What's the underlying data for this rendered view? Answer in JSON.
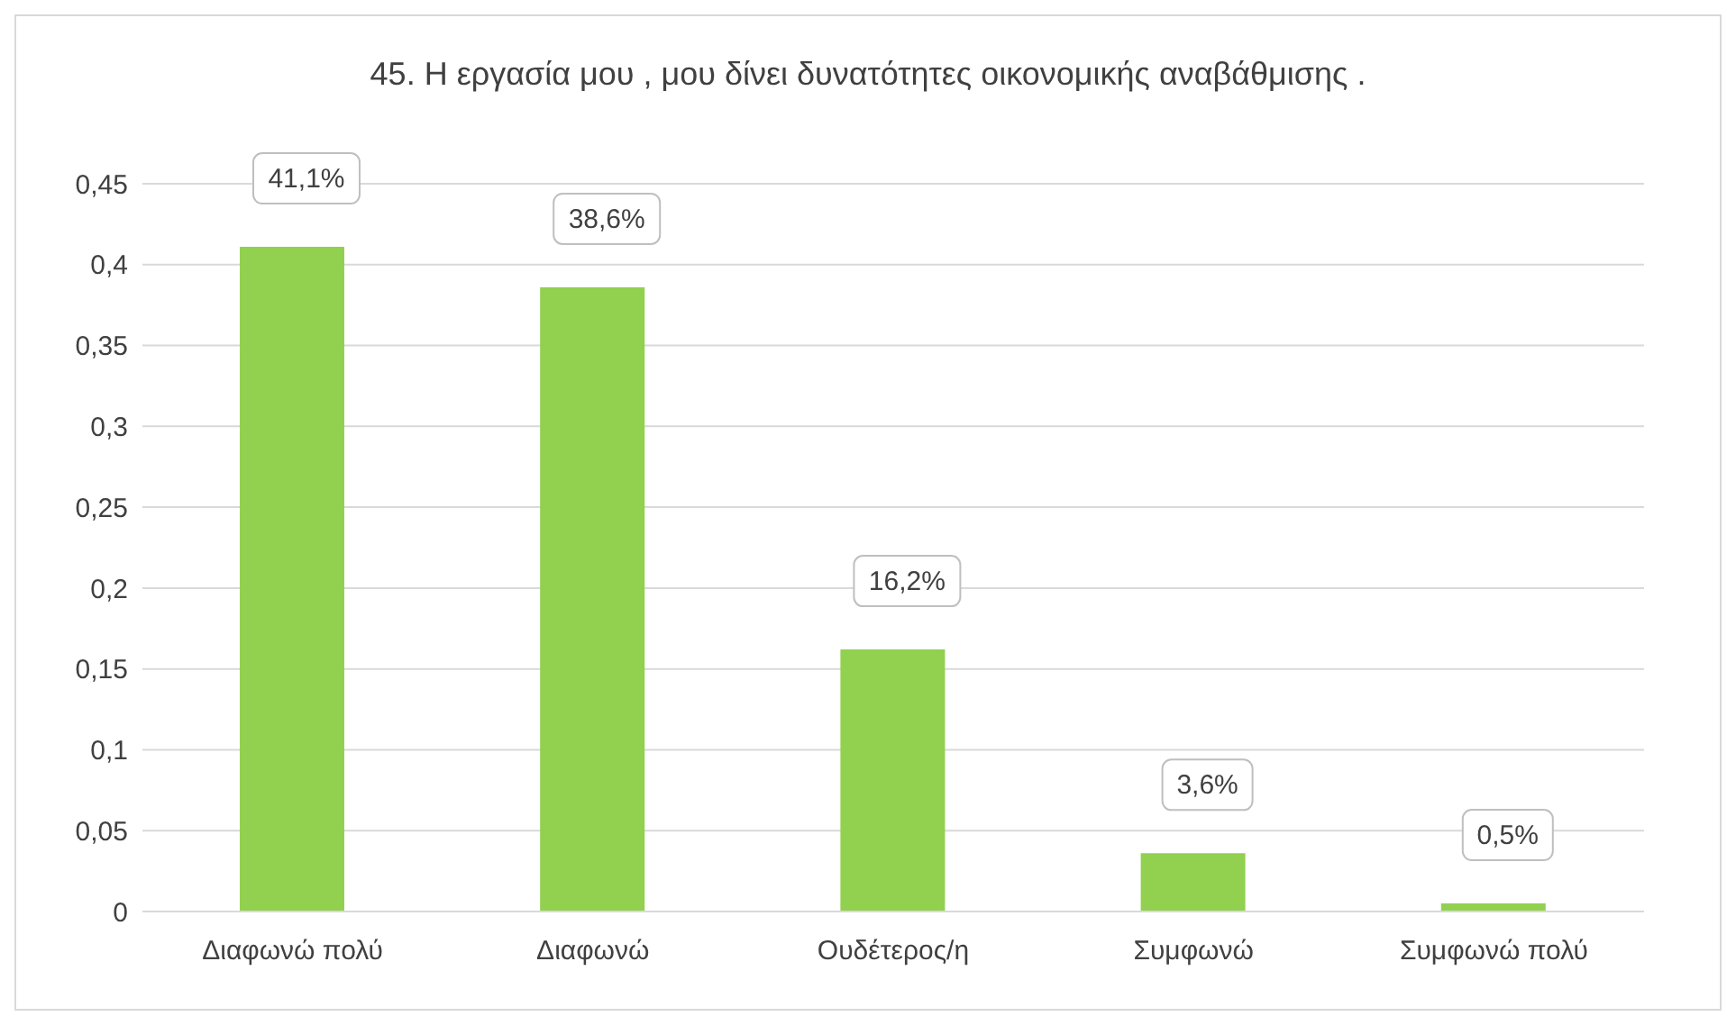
{
  "chart_data": {
    "type": "bar",
    "title": "45. Η εργασία μου , μου δίνει δυνατότητες οικονομικής αναβάθμισης .",
    "categories": [
      "Διαφωνώ πολύ",
      "Διαφωνώ",
      "Ουδέτερος/η",
      "Συμφωνώ",
      "Συμφωνώ πολύ"
    ],
    "values": [
      0.411,
      0.386,
      0.162,
      0.036,
      0.005
    ],
    "value_labels": [
      "41,1%",
      "38,6%",
      "16,2%",
      "3,6%",
      "0,5%"
    ],
    "color": "#92d050",
    "ylim": [
      0,
      0.45
    ],
    "yticks": [
      0,
      {
        "value": 0.05,
        "label": "0,05"
      },
      {
        "value": 0.1,
        "label": "0,1"
      },
      {
        "value": 0.15,
        "label": "0,15"
      },
      {
        "value": 0.2,
        "label": "0,2"
      },
      {
        "value": 0.25,
        "label": "0,25"
      },
      {
        "value": 0.3,
        "label": "0,3"
      },
      {
        "value": 0.35,
        "label": "0,35"
      },
      {
        "value": 0.4,
        "label": "0,4"
      },
      {
        "value": 0.45,
        "label": "0,45"
      }
    ],
    "grid": "y"
  }
}
